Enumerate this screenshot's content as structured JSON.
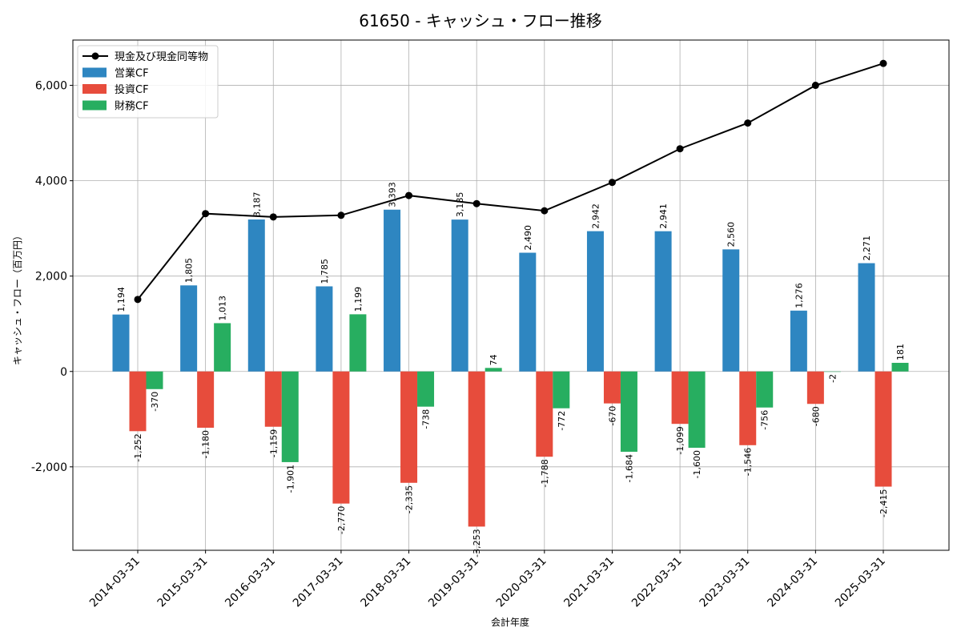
{
  "chart_data": {
    "type": "bar",
    "title": "61650 - キャッシュ・フロー推移",
    "xlabel": "会計年度",
    "ylabel": "キャッシュ・フロー（百万円）",
    "categories": [
      "2014-03-31",
      "2015-03-31",
      "2016-03-31",
      "2017-03-31",
      "2018-03-31",
      "2019-03-31",
      "2020-03-31",
      "2021-03-31",
      "2022-03-31",
      "2023-03-31",
      "2024-03-31",
      "2025-03-31"
    ],
    "ylim": [
      -3750,
      6950
    ],
    "yticks": [
      -2000,
      0,
      2000,
      4000,
      6000
    ],
    "ytick_labels": [
      "-2,000",
      "0",
      "2,000",
      "4,000",
      "6,000"
    ],
    "grid": true,
    "legend_position": "top-left",
    "series": [
      {
        "name": "営業CF",
        "kind": "bar",
        "color": "#2e86c1",
        "values": [
          1194,
          1805,
          3187,
          1785,
          3393,
          3185,
          2490,
          2942,
          2941,
          2560,
          1276,
          2271
        ],
        "labels": [
          "1,194",
          "1,805",
          "3,187",
          "1,785",
          "3,393",
          "3,185",
          "2,490",
          "2,942",
          "2,941",
          "2,560",
          "1,276",
          "2,271"
        ]
      },
      {
        "name": "投資CF",
        "kind": "bar",
        "color": "#e74c3c",
        "values": [
          -1252,
          -1180,
          -1159,
          -2770,
          -2335,
          -3253,
          -1788,
          -670,
          -1099,
          -1546,
          -680,
          -2415
        ],
        "labels": [
          "-1,252",
          "-1,180",
          "-1,159",
          "-2,770",
          "-2,335",
          "-3,253",
          "-1,788",
          "-670",
          "-1,099",
          "-1,546",
          "-680",
          "-2,415"
        ]
      },
      {
        "name": "財務CF",
        "kind": "bar",
        "color": "#27ae60",
        "values": [
          -370,
          1013,
          -1901,
          1199,
          -738,
          74,
          -772,
          -1684,
          -1600,
          -756,
          -2,
          181
        ],
        "labels": [
          "-370",
          "1,013",
          "-1,901",
          "1,199",
          "-738",
          "74",
          "-772",
          "-1,684",
          "-1,600",
          "-756",
          "-2",
          "181"
        ]
      },
      {
        "name": "現金及び現金同等物",
        "kind": "line",
        "color": "#000000",
        "values": [
          1510,
          3310,
          3240,
          3275,
          3690,
          3520,
          3370,
          3965,
          4670,
          5210,
          6000,
          6460
        ]
      }
    ],
    "legend_order": [
      "現金及び現金同等物",
      "営業CF",
      "投資CF",
      "財務CF"
    ]
  }
}
